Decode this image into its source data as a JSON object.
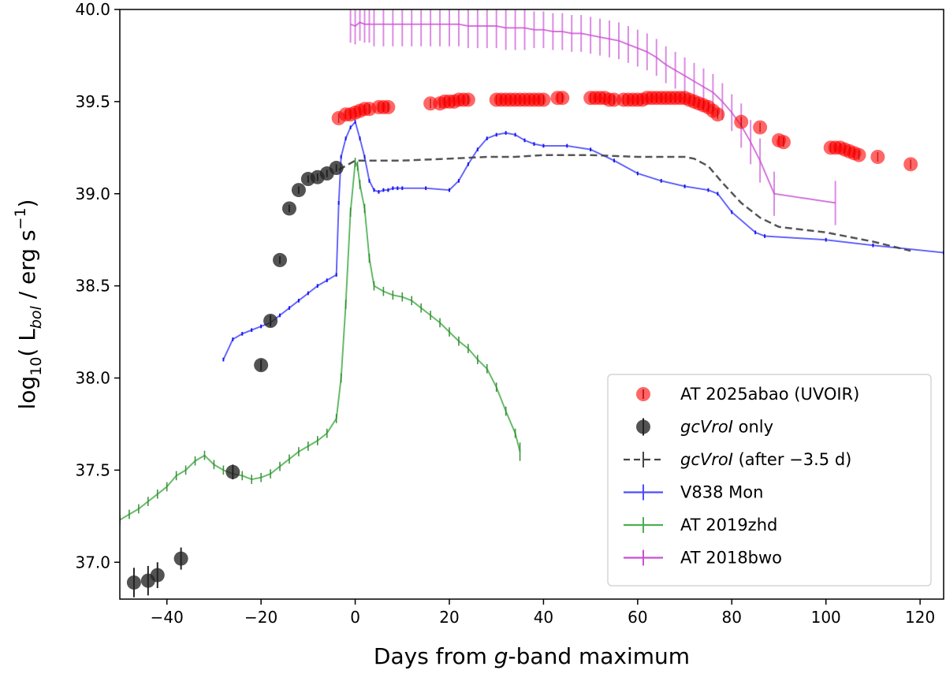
{
  "chart_data": {
    "type": "scatter",
    "xlabel": "Days from g-band maximum",
    "xlabel_parts": [
      "Days from ",
      "g",
      "-band maximum"
    ],
    "ylabel": "log10( Lbol / erg s−1)",
    "xlim": [
      -50,
      125
    ],
    "ylim": [
      36.8,
      40.0
    ],
    "xticks": [
      -40,
      -20,
      0,
      20,
      40,
      60,
      80,
      100,
      120
    ],
    "xtick_labels": [
      "−40",
      "−20",
      "0",
      "20",
      "40",
      "60",
      "80",
      "100",
      "120"
    ],
    "yticks": [
      37.0,
      37.5,
      38.0,
      38.5,
      39.0,
      39.5,
      40.0
    ],
    "ytick_labels": [
      "37.0",
      "37.5",
      "38.0",
      "38.5",
      "39.0",
      "39.5",
      "40.0"
    ],
    "legend_position": "lower-right",
    "legend": [
      {
        "label": "AT 2025abao (UVOIR)",
        "italic": false
      },
      {
        "label": "gcVroI only",
        "italic": true
      },
      {
        "label_italic": "gcVroI",
        "label_rest": " (after −3.5 d)"
      },
      {
        "label": "V838 Mon"
      },
      {
        "label": "AT 2019zhd"
      },
      {
        "label": "AT 2018bwo"
      }
    ],
    "series": [
      {
        "name": "AT 2025abao (UVOIR)",
        "kind": "markers",
        "color": "#ff0000",
        "x": [
          -3.5,
          -2,
          -1,
          0,
          1,
          2,
          3,
          5,
          6,
          7,
          16,
          18,
          19,
          20,
          21,
          22,
          23,
          24,
          30,
          31,
          32,
          33,
          34,
          35,
          36,
          37,
          38,
          39,
          40,
          43,
          44,
          50,
          51,
          52,
          53,
          54,
          55,
          57,
          58,
          59,
          60,
          61,
          62,
          63,
          64,
          65,
          66,
          67,
          68,
          69,
          70,
          71,
          72,
          73,
          74,
          75,
          76,
          77,
          82,
          86,
          90,
          91,
          101,
          102,
          103,
          104,
          105,
          106,
          107,
          111,
          118
        ],
        "y": [
          39.41,
          39.43,
          39.43,
          39.44,
          39.45,
          39.46,
          39.46,
          39.47,
          39.47,
          39.47,
          39.49,
          39.49,
          39.5,
          39.5,
          39.5,
          39.51,
          39.51,
          39.51,
          39.51,
          39.51,
          39.51,
          39.51,
          39.51,
          39.51,
          39.51,
          39.51,
          39.51,
          39.51,
          39.51,
          39.52,
          39.52,
          39.52,
          39.52,
          39.52,
          39.52,
          39.51,
          39.51,
          39.51,
          39.51,
          39.51,
          39.51,
          39.51,
          39.52,
          39.52,
          39.52,
          39.52,
          39.52,
          39.52,
          39.52,
          39.52,
          39.52,
          39.51,
          39.5,
          39.49,
          39.48,
          39.47,
          39.45,
          39.43,
          39.39,
          39.36,
          39.29,
          39.28,
          39.25,
          39.25,
          39.25,
          39.24,
          39.23,
          39.22,
          39.21,
          39.2,
          39.16
        ]
      },
      {
        "name": "gcVroI only",
        "kind": "markers",
        "color": "#222222",
        "x": [
          -47,
          -44,
          -42,
          -37,
          -26,
          -20,
          -18,
          -16,
          -14,
          -12,
          -10,
          -8,
          -6,
          -4
        ],
        "y": [
          36.89,
          36.9,
          36.93,
          37.02,
          37.49,
          38.07,
          38.31,
          38.64,
          38.92,
          39.02,
          39.08,
          39.09,
          39.11,
          39.14
        ],
        "yerr": [
          0.08,
          0.08,
          0.07,
          0.06,
          0.04,
          0.03,
          0.03,
          0.02,
          0.02,
          0.02,
          0.02,
          0.02,
          0.02,
          0.02
        ]
      },
      {
        "name": "gcVroI (after −3.5 d)",
        "kind": "dashed",
        "color": "#444444",
        "x": [
          -3.5,
          0,
          2,
          10,
          20,
          28,
          34,
          40,
          50,
          60,
          70,
          72,
          75,
          78,
          82,
          86,
          90,
          100,
          110,
          118
        ],
        "y": [
          39.13,
          39.18,
          39.18,
          39.18,
          39.19,
          39.2,
          39.2,
          39.21,
          39.21,
          39.2,
          39.2,
          39.19,
          39.15,
          39.06,
          38.95,
          38.87,
          38.82,
          38.79,
          38.74,
          38.69
        ]
      },
      {
        "name": "V838 Mon",
        "kind": "line",
        "color": "#4d4dff",
        "x": [
          -28,
          -26,
          -24,
          -22,
          -20,
          -18,
          -16,
          -14,
          -12,
          -10,
          -8,
          -6,
          -4,
          -3.5,
          -3,
          -2,
          -1,
          0,
          1,
          2,
          3,
          4,
          5,
          6,
          7,
          8,
          9,
          10,
          15,
          20,
          22,
          24,
          26,
          28,
          30,
          32,
          34,
          36,
          38,
          40,
          45,
          50,
          55,
          60,
          65,
          70,
          75,
          77,
          80,
          85,
          87,
          100,
          110,
          125
        ],
        "y": [
          38.1,
          38.21,
          38.24,
          38.26,
          38.28,
          38.3,
          38.34,
          38.38,
          38.42,
          38.46,
          38.5,
          38.53,
          38.56,
          38.95,
          39.2,
          39.3,
          39.36,
          39.39,
          39.3,
          39.2,
          39.07,
          39.02,
          39.01,
          39.02,
          39.02,
          39.03,
          39.03,
          39.03,
          39.03,
          39.02,
          39.07,
          39.16,
          39.24,
          39.3,
          39.32,
          39.33,
          39.32,
          39.29,
          39.27,
          39.26,
          39.26,
          39.24,
          39.18,
          39.11,
          39.07,
          39.04,
          39.02,
          39.0,
          38.9,
          38.79,
          38.77,
          38.75,
          38.72,
          38.68
        ]
      },
      {
        "name": "AT 2019zhd",
        "kind": "line",
        "color": "#4caf50",
        "x": [
          -50,
          -48,
          -46,
          -44,
          -42,
          -40,
          -38,
          -36,
          -34,
          -32,
          -30,
          -28,
          -26,
          -24,
          -22,
          -20,
          -18,
          -16,
          -14,
          -12,
          -10,
          -8,
          -6,
          -4,
          -3,
          -2,
          -1,
          0,
          0.5,
          1,
          2,
          3,
          4,
          6,
          8,
          10,
          12,
          14,
          16,
          18,
          20,
          22,
          24,
          26,
          28,
          30,
          32,
          34,
          35
        ],
        "y": [
          37.23,
          37.26,
          37.29,
          37.33,
          37.37,
          37.41,
          37.47,
          37.5,
          37.55,
          37.58,
          37.53,
          37.5,
          37.48,
          37.47,
          37.45,
          37.46,
          37.48,
          37.52,
          37.56,
          37.6,
          37.63,
          37.66,
          37.7,
          37.78,
          38.0,
          38.4,
          38.9,
          39.17,
          39.15,
          39.05,
          38.92,
          38.65,
          38.5,
          38.47,
          38.45,
          38.44,
          38.42,
          38.38,
          38.34,
          38.3,
          38.25,
          38.2,
          38.16,
          38.1,
          38.05,
          37.95,
          37.82,
          37.7,
          37.6
        ],
        "yerr": [
          0,
          0,
          0,
          0,
          0,
          0,
          0,
          0,
          0,
          0,
          0,
          0,
          0,
          0,
          0,
          0,
          0,
          0,
          0,
          0,
          0,
          0,
          0,
          0,
          0,
          0,
          0,
          0,
          0,
          0,
          0,
          0,
          0,
          0,
          0,
          0,
          0,
          0,
          0,
          0,
          0,
          0,
          0,
          0,
          0,
          0,
          0,
          0,
          0.05
        ]
      },
      {
        "name": "AT 2018bwo",
        "kind": "line",
        "color": "#c94fd4",
        "x": [
          -1,
          0,
          1,
          2,
          3,
          4,
          6,
          8,
          10,
          12,
          14,
          16,
          18,
          20,
          22,
          24,
          26,
          28,
          30,
          32,
          34,
          36,
          38,
          40,
          42,
          44,
          46,
          48,
          50,
          52,
          54,
          56,
          58,
          60,
          62,
          64,
          66,
          68,
          70,
          72,
          74,
          76,
          78,
          80,
          82,
          84,
          86,
          89,
          102
        ],
        "y": [
          39.92,
          39.91,
          39.93,
          39.92,
          39.92,
          39.92,
          39.92,
          39.92,
          39.92,
          39.92,
          39.92,
          39.92,
          39.92,
          39.92,
          39.92,
          39.91,
          39.91,
          39.91,
          39.91,
          39.9,
          39.9,
          39.9,
          39.89,
          39.89,
          39.88,
          39.88,
          39.87,
          39.87,
          39.86,
          39.85,
          39.84,
          39.83,
          39.81,
          39.79,
          39.77,
          39.74,
          39.7,
          39.67,
          39.64,
          39.61,
          39.58,
          39.55,
          39.5,
          39.44,
          39.37,
          39.28,
          39.18,
          39.0,
          38.95
        ]
      }
    ]
  }
}
